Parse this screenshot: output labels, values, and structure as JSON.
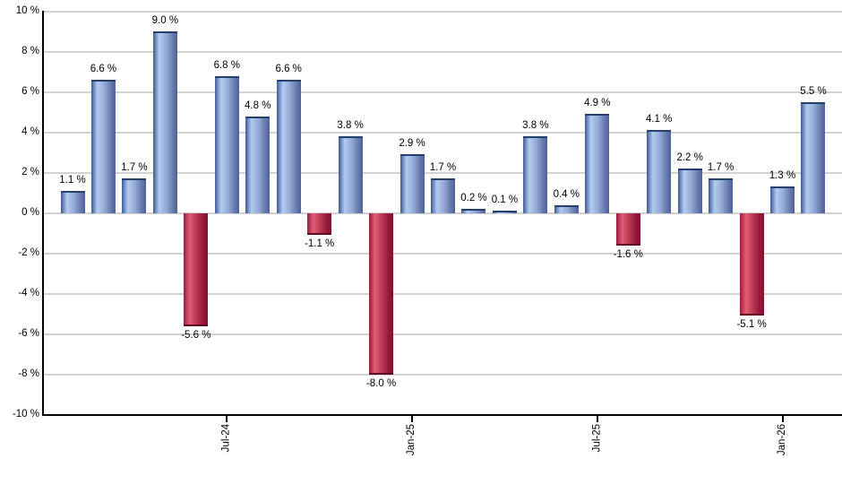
{
  "chart_data": {
    "type": "bar",
    "title": "",
    "xlabel": "",
    "ylabel": "",
    "grid": true,
    "legend": false,
    "ylim": [
      -10,
      10
    ],
    "y_axis": {
      "min": -10,
      "max": 10,
      "step": 2,
      "tick_labels": [
        "10 %",
        "8 %",
        "6 %",
        "4 %",
        "2 %",
        "0 %",
        "-2 %",
        "-4 %",
        "-6 %",
        "-8 %",
        "-10 %"
      ]
    },
    "x_axis": {
      "ticks": [
        {
          "index": 5,
          "label": "Jul-24"
        },
        {
          "index": 11,
          "label": "Jan-25"
        },
        {
          "index": 17,
          "label": "Jul-25"
        },
        {
          "index": 23,
          "label": "Jan-26"
        }
      ]
    },
    "values": [
      1.1,
      6.6,
      1.7,
      9.0,
      -5.6,
      6.8,
      4.8,
      6.6,
      -1.1,
      3.8,
      -8.0,
      2.9,
      1.7,
      0.2,
      0.1,
      3.8,
      0.4,
      4.9,
      -1.6,
      4.1,
      2.2,
      1.7,
      -5.1,
      1.3,
      5.5
    ],
    "bar_labels": [
      "1.1 %",
      "6.6 %",
      "1.7 %",
      "9.0 %",
      "-5.6 %",
      "6.8 %",
      "4.8 %",
      "6.6 %",
      "-1.1 %",
      "3.8 %",
      "-8.0 %",
      "2.9 %",
      "1.7 %",
      "0.2 %",
      "0.1 %",
      "3.8 %",
      "0.4 %",
      "4.9 %",
      "-1.6 %",
      "4.1 %",
      "2.2 %",
      "1.7 %",
      "-5.1 %",
      "1.3 %",
      "5.5 %"
    ],
    "colors": {
      "positive_gradient": [
        "#3c5a96",
        "#b3cbf2",
        "#93a9d6",
        "#6a7cae",
        "#50619a"
      ],
      "positive_cap": "#24406f",
      "negative_gradient": [
        "#9c1a40",
        "#e25d74",
        "#b93753",
        "#96193c",
        "#871030"
      ],
      "negative_cap": "#5f0a22",
      "gridline": "#d2d2d2",
      "axis": "#000000",
      "background": "#ffffff",
      "label_text": "#000000"
    }
  }
}
